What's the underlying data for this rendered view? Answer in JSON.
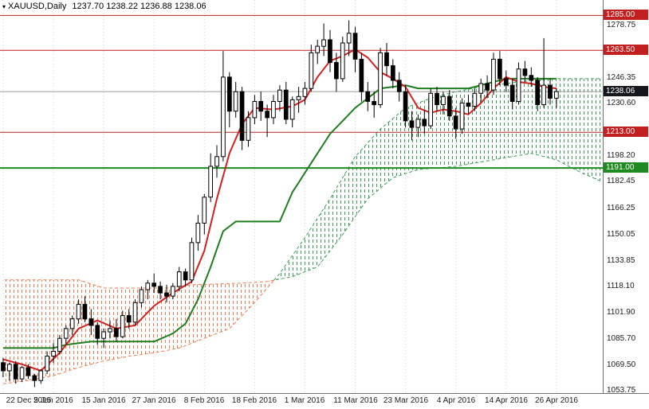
{
  "window": {
    "title_symbol": "XAUUSD,Daily",
    "title_ohlc": "1237.70 1238.22 1236.88 1238.06"
  },
  "icons": {
    "title_marker": "▾"
  },
  "chart_data": {
    "type": "candlestick",
    "symbol": "XAUUSD",
    "timeframe": "Daily",
    "indicator": "Ichimoku Kinko Hyo",
    "ohlc_current": {
      "open": 1237.7,
      "high": 1238.22,
      "low": 1236.88,
      "close": 1238.06
    },
    "ylim": [
      1052.25,
      1294.5
    ],
    "bars_total": 96,
    "last_bar_index": 88,
    "cloud_end_index": 95,
    "grid_color": "#d2d2d2",
    "y_ticks": [
      "1278.75",
      "1246.35",
      "1230.60",
      "1198.20",
      "1182.45",
      "1166.25",
      "1150.05",
      "1133.85",
      "1118.10",
      "1101.90",
      "1085.70",
      "1069.50",
      "1053.75"
    ],
    "x_ticks": [
      {
        "index": 0,
        "label": "22 Dec 2015"
      },
      {
        "index": 8,
        "label": "5 Jan 2016"
      },
      {
        "index": 16,
        "label": "15 Jan 2016"
      },
      {
        "index": 24,
        "label": "27 Jan 2016"
      },
      {
        "index": 32,
        "label": "8 Feb 2016"
      },
      {
        "index": 40,
        "label": "18 Feb 2016"
      },
      {
        "index": 48,
        "label": "1 Mar 2016"
      },
      {
        "index": 56,
        "label": "11 Mar 2016"
      },
      {
        "index": 64,
        "label": "23 Mar 2016"
      },
      {
        "index": 72,
        "label": "4 Apr 2016"
      },
      {
        "index": 80,
        "label": "14 Apr 2016"
      },
      {
        "index": 88,
        "label": "26 Apr 2016"
      }
    ],
    "levels": [
      {
        "label": "1285.00",
        "price": 1285.0,
        "color": "#c22020",
        "width": 1
      },
      {
        "label": "1263.50",
        "price": 1263.5,
        "color": "#c22020",
        "width": 1
      },
      {
        "label": "1238.06",
        "price": 1238.06,
        "color": "#9a9a9a",
        "width": 1
      },
      {
        "label": "1213.00",
        "price": 1213.0,
        "color": "#c22020",
        "width": 1
      },
      {
        "label": "1191.00",
        "price": 1191.0,
        "color": "#1f8a1f",
        "width": 2
      }
    ],
    "price_badges": [
      {
        "label": "1285.00",
        "price": 1285.0,
        "bg": "#c22020"
      },
      {
        "label": "1263.50",
        "price": 1263.5,
        "bg": "#c22020"
      },
      {
        "label": "1238.06",
        "price": 1238.06,
        "bg": "#14171c"
      },
      {
        "label": "1213.00",
        "price": 1213.0,
        "bg": "#c22020"
      },
      {
        "label": "1191.00",
        "price": 1191.0,
        "bg": "#1f8a1f"
      }
    ],
    "candle_colors": {
      "bull_fill": "#ffffff",
      "bear_fill": "#000000",
      "stroke": "#000000"
    },
    "candles": [
      [
        1071,
        1074,
        1062,
        1066
      ],
      [
        1066,
        1071,
        1060,
        1070
      ],
      [
        1070,
        1072,
        1058,
        1061
      ],
      [
        1061,
        1069,
        1059,
        1068
      ],
      [
        1068,
        1070,
        1061,
        1063
      ],
      [
        1063,
        1064,
        1056,
        1060
      ],
      [
        1060,
        1067,
        1058,
        1066
      ],
      [
        1066,
        1078,
        1064,
        1075
      ],
      [
        1075,
        1083,
        1071,
        1078
      ],
      [
        1078,
        1088,
        1076,
        1086
      ],
      [
        1086,
        1094,
        1082,
        1092
      ],
      [
        1092,
        1100,
        1088,
        1098
      ],
      [
        1098,
        1110,
        1095,
        1107
      ],
      [
        1107,
        1112,
        1096,
        1098
      ],
      [
        1098,
        1104,
        1088,
        1094
      ],
      [
        1094,
        1096,
        1082,
        1086
      ],
      [
        1086,
        1092,
        1080,
        1090
      ],
      [
        1090,
        1097,
        1086,
        1092
      ],
      [
        1092,
        1098,
        1084,
        1087
      ],
      [
        1087,
        1103,
        1086,
        1100
      ],
      [
        1100,
        1104,
        1092,
        1096
      ],
      [
        1096,
        1110,
        1094,
        1108
      ],
      [
        1108,
        1118,
        1105,
        1116
      ],
      [
        1116,
        1122,
        1110,
        1120
      ],
      [
        1120,
        1126,
        1114,
        1118
      ],
      [
        1118,
        1121,
        1110,
        1114
      ],
      [
        1114,
        1119,
        1108,
        1112
      ],
      [
        1112,
        1120,
        1110,
        1118
      ],
      [
        1118,
        1130,
        1115,
        1127
      ],
      [
        1127,
        1129,
        1118,
        1122
      ],
      [
        1122,
        1148,
        1120,
        1145
      ],
      [
        1145,
        1162,
        1140,
        1157
      ],
      [
        1157,
        1175,
        1150,
        1173
      ],
      [
        1173,
        1200,
        1170,
        1192
      ],
      [
        1192,
        1205,
        1185,
        1198
      ],
      [
        1198,
        1263,
        1195,
        1247
      ],
      [
        1247,
        1250,
        1216,
        1226
      ],
      [
        1226,
        1244,
        1222,
        1238
      ],
      [
        1238,
        1241,
        1202,
        1208
      ],
      [
        1208,
        1226,
        1204,
        1222
      ],
      [
        1222,
        1236,
        1218,
        1232
      ],
      [
        1232,
        1238,
        1220,
        1226
      ],
      [
        1226,
        1230,
        1210,
        1222
      ],
      [
        1222,
        1236,
        1218,
        1232
      ],
      [
        1232,
        1242,
        1226,
        1239
      ],
      [
        1239,
        1244,
        1218,
        1221
      ],
      [
        1221,
        1235,
        1216,
        1233
      ],
      [
        1233,
        1241,
        1225,
        1235
      ],
      [
        1235,
        1244,
        1230,
        1240
      ],
      [
        1240,
        1267,
        1238,
        1262
      ],
      [
        1262,
        1270,
        1255,
        1266
      ],
      [
        1266,
        1280,
        1260,
        1270
      ],
      [
        1270,
        1276,
        1250,
        1256
      ],
      [
        1256,
        1262,
        1238,
        1246
      ],
      [
        1246,
        1272,
        1244,
        1268
      ],
      [
        1268,
        1282,
        1260,
        1274
      ],
      [
        1274,
        1278,
        1250,
        1258
      ],
      [
        1258,
        1262,
        1232,
        1238
      ],
      [
        1238,
        1244,
        1226,
        1232
      ],
      [
        1232,
        1238,
        1222,
        1230
      ],
      [
        1230,
        1265,
        1228,
        1262
      ],
      [
        1262,
        1268,
        1248,
        1254
      ],
      [
        1254,
        1258,
        1240,
        1245
      ],
      [
        1245,
        1250,
        1232,
        1238
      ],
      [
        1238,
        1242,
        1216,
        1220
      ],
      [
        1220,
        1226,
        1208,
        1216
      ],
      [
        1216,
        1224,
        1210,
        1221
      ],
      [
        1221,
        1227,
        1212,
        1217
      ],
      [
        1217,
        1240,
        1215,
        1237
      ],
      [
        1237,
        1241,
        1226,
        1230
      ],
      [
        1230,
        1238,
        1224,
        1235
      ],
      [
        1235,
        1239,
        1220,
        1223
      ],
      [
        1223,
        1228,
        1209,
        1215
      ],
      [
        1215,
        1234,
        1212,
        1231
      ],
      [
        1231,
        1236,
        1224,
        1229
      ],
      [
        1229,
        1240,
        1226,
        1237
      ],
      [
        1237,
        1246,
        1232,
        1243
      ],
      [
        1243,
        1248,
        1234,
        1239
      ],
      [
        1239,
        1262,
        1236,
        1258
      ],
      [
        1258,
        1263,
        1242,
        1246
      ],
      [
        1246,
        1251,
        1238,
        1242
      ],
      [
        1242,
        1246,
        1227,
        1232
      ],
      [
        1232,
        1256,
        1230,
        1252
      ],
      [
        1252,
        1257,
        1244,
        1248
      ],
      [
        1248,
        1253,
        1241,
        1245
      ],
      [
        1245,
        1247,
        1226,
        1230
      ],
      [
        1230,
        1271,
        1228,
        1242
      ],
      [
        1242,
        1246,
        1230,
        1234
      ],
      [
        1234,
        1240,
        1228,
        1238.06
      ]
    ],
    "ichimoku": {
      "cloud_bull_color": "#3c9e56",
      "cloud_bear_color": "#ee7b50",
      "tenkan": {
        "color": "#d32020",
        "width": 2,
        "points": [
          [
            0,
            1073
          ],
          [
            3,
            1070
          ],
          [
            6,
            1066
          ],
          [
            9,
            1077
          ],
          [
            12,
            1092
          ],
          [
            15,
            1097
          ],
          [
            18,
            1092
          ],
          [
            21,
            1094
          ],
          [
            24,
            1106
          ],
          [
            27,
            1114
          ],
          [
            30,
            1121
          ],
          [
            32,
            1140
          ],
          [
            34,
            1172
          ],
          [
            36,
            1200
          ],
          [
            38,
            1218
          ],
          [
            40,
            1228
          ],
          [
            43,
            1227
          ],
          [
            46,
            1229
          ],
          [
            48,
            1233
          ],
          [
            50,
            1247
          ],
          [
            52,
            1257
          ],
          [
            54,
            1260
          ],
          [
            56,
            1264
          ],
          [
            58,
            1259
          ],
          [
            60,
            1250
          ],
          [
            62,
            1246
          ],
          [
            64,
            1241
          ],
          [
            66,
            1228
          ],
          [
            68,
            1225
          ],
          [
            70,
            1227
          ],
          [
            72,
            1226
          ],
          [
            74,
            1224
          ],
          [
            76,
            1231
          ],
          [
            78,
            1240
          ],
          [
            80,
            1247
          ],
          [
            82,
            1244
          ],
          [
            84,
            1243
          ],
          [
            86,
            1241
          ],
          [
            88,
            1240
          ]
        ]
      },
      "kijun": {
        "color": "#1e7d1e",
        "width": 2,
        "points": [
          [
            0,
            1080
          ],
          [
            8,
            1080
          ],
          [
            10,
            1082
          ],
          [
            14,
            1084
          ],
          [
            24,
            1084
          ],
          [
            27,
            1089
          ],
          [
            29,
            1095
          ],
          [
            31,
            1110
          ],
          [
            33,
            1130
          ],
          [
            35,
            1152
          ],
          [
            37,
            1158
          ],
          [
            44,
            1158
          ],
          [
            46,
            1176
          ],
          [
            48,
            1188
          ],
          [
            50,
            1200
          ],
          [
            52,
            1212
          ],
          [
            54,
            1220
          ],
          [
            56,
            1228
          ],
          [
            58,
            1234
          ],
          [
            60,
            1240
          ],
          [
            64,
            1242
          ],
          [
            66,
            1240
          ],
          [
            74,
            1240
          ],
          [
            76,
            1242
          ],
          [
            80,
            1246
          ],
          [
            88,
            1246
          ]
        ]
      },
      "senkou_a": {
        "points": [
          [
            0,
            1058
          ],
          [
            4,
            1060
          ],
          [
            8,
            1063
          ],
          [
            12,
            1068
          ],
          [
            16,
            1072
          ],
          [
            20,
            1075
          ],
          [
            24,
            1077
          ],
          [
            28,
            1080
          ],
          [
            32,
            1086
          ],
          [
            36,
            1092
          ],
          [
            40,
            1108
          ],
          [
            44,
            1126
          ],
          [
            48,
            1148
          ],
          [
            52,
            1172
          ],
          [
            56,
            1198
          ],
          [
            60,
            1215
          ],
          [
            64,
            1228
          ],
          [
            68,
            1234
          ],
          [
            72,
            1238
          ],
          [
            76,
            1241
          ],
          [
            80,
            1243
          ],
          [
            84,
            1245
          ],
          [
            88,
            1246
          ],
          [
            95,
            1246
          ]
        ]
      },
      "senkou_b": {
        "points": [
          [
            0,
            1122
          ],
          [
            12,
            1122
          ],
          [
            16,
            1117
          ],
          [
            26,
            1117
          ],
          [
            30,
            1119
          ],
          [
            38,
            1120
          ],
          [
            42,
            1121
          ],
          [
            46,
            1124
          ],
          [
            50,
            1130
          ],
          [
            54,
            1150
          ],
          [
            58,
            1172
          ],
          [
            62,
            1185
          ],
          [
            66,
            1190
          ],
          [
            72,
            1192
          ],
          [
            78,
            1196
          ],
          [
            84,
            1200
          ],
          [
            88,
            1196
          ],
          [
            92,
            1188
          ],
          [
            95,
            1183
          ]
        ]
      }
    }
  }
}
